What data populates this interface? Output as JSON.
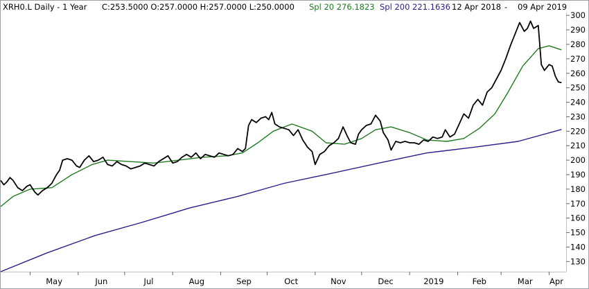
{
  "header": {
    "symbol": "XRH0.L Daily -  1 Year",
    "ohlc": "C:253.5000 O:257.0000 H:257.0000 L:250.0000",
    "spl20": "Spl 20 276.1823",
    "spl200": "Spl 200 221.1636",
    "date_start": "12 Apr 2018",
    "date_sep": "-",
    "date_end": "09 Apr 2019"
  },
  "colors": {
    "price": "#000000",
    "spl20": "#1f7a1f",
    "spl200": "#2e1a8a",
    "frame": "#9aa0a6"
  },
  "chart_data": {
    "type": "line",
    "x_tick_labels": [
      "May",
      "Jun",
      "Jul",
      "Aug",
      "Sep",
      "Oct",
      "Nov",
      "Dec",
      "2019",
      "Feb",
      "Mar",
      "Apr"
    ],
    "y_tick_labels": [
      "130",
      "140",
      "150",
      "160",
      "170",
      "180",
      "190",
      "200",
      "210",
      "220",
      "230",
      "240",
      "250",
      "260",
      "270",
      "280",
      "290",
      "300"
    ],
    "ylim": [
      123,
      302
    ],
    "xlim": [
      "2018-04-12",
      "2019-04-12"
    ],
    "grid": false,
    "series": [
      {
        "key": "price",
        "points": [
          [
            "2018-04-12",
            186
          ],
          [
            "2018-04-14",
            183
          ],
          [
            "2018-04-16",
            185
          ],
          [
            "2018-04-18",
            188
          ],
          [
            "2018-04-20",
            186
          ],
          [
            "2018-04-23",
            181
          ],
          [
            "2018-04-26",
            179
          ],
          [
            "2018-04-29",
            182
          ],
          [
            "2018-05-01",
            183
          ],
          [
            "2018-05-04",
            178
          ],
          [
            "2018-05-06",
            176
          ],
          [
            "2018-05-09",
            179
          ],
          [
            "2018-05-12",
            181
          ],
          [
            "2018-05-15",
            184
          ],
          [
            "2018-05-18",
            190
          ],
          [
            "2018-05-20",
            193
          ],
          [
            "2018-05-22",
            200
          ],
          [
            "2018-05-25",
            201
          ],
          [
            "2018-05-28",
            200
          ],
          [
            "2018-05-31",
            196
          ],
          [
            "2018-06-02",
            195
          ],
          [
            "2018-06-05",
            200
          ],
          [
            "2018-06-08",
            203
          ],
          [
            "2018-06-11",
            199
          ],
          [
            "2018-06-14",
            200
          ],
          [
            "2018-06-17",
            202
          ],
          [
            "2018-06-20",
            197
          ],
          [
            "2018-06-23",
            196
          ],
          [
            "2018-06-26",
            199
          ],
          [
            "2018-06-29",
            197
          ],
          [
            "2018-07-02",
            196
          ],
          [
            "2018-07-05",
            194
          ],
          [
            "2018-07-08",
            195
          ],
          [
            "2018-07-11",
            196
          ],
          [
            "2018-07-14",
            198
          ],
          [
            "2018-07-17",
            197
          ],
          [
            "2018-07-20",
            196
          ],
          [
            "2018-07-23",
            199
          ],
          [
            "2018-07-26",
            201
          ],
          [
            "2018-07-29",
            203
          ],
          [
            "2018-08-01",
            198
          ],
          [
            "2018-08-04",
            199
          ],
          [
            "2018-08-07",
            202
          ],
          [
            "2018-08-10",
            204
          ],
          [
            "2018-08-13",
            202
          ],
          [
            "2018-08-16",
            205
          ],
          [
            "2018-08-19",
            201
          ],
          [
            "2018-08-22",
            204
          ],
          [
            "2018-08-25",
            203
          ],
          [
            "2018-08-28",
            202
          ],
          [
            "2018-08-31",
            205
          ],
          [
            "2018-09-03",
            204
          ],
          [
            "2018-09-06",
            203
          ],
          [
            "2018-09-09",
            204
          ],
          [
            "2018-09-12",
            208
          ],
          [
            "2018-09-15",
            206
          ],
          [
            "2018-09-17",
            208
          ],
          [
            "2018-09-19",
            224
          ],
          [
            "2018-09-21",
            228
          ],
          [
            "2018-09-24",
            226
          ],
          [
            "2018-09-27",
            229
          ],
          [
            "2018-09-30",
            230
          ],
          [
            "2018-10-02",
            228
          ],
          [
            "2018-10-04",
            233
          ],
          [
            "2018-10-06",
            225
          ],
          [
            "2018-10-09",
            223
          ],
          [
            "2018-10-12",
            222
          ],
          [
            "2018-10-15",
            221
          ],
          [
            "2018-10-18",
            217
          ],
          [
            "2018-10-21",
            221
          ],
          [
            "2018-10-24",
            214
          ],
          [
            "2018-10-27",
            209
          ],
          [
            "2018-10-30",
            206
          ],
          [
            "2018-11-01",
            197
          ],
          [
            "2018-11-04",
            204
          ],
          [
            "2018-11-07",
            206
          ],
          [
            "2018-11-10",
            210
          ],
          [
            "2018-11-13",
            212
          ],
          [
            "2018-11-16",
            215
          ],
          [
            "2018-11-19",
            223
          ],
          [
            "2018-11-22",
            216
          ],
          [
            "2018-11-24",
            212
          ],
          [
            "2018-11-27",
            211
          ],
          [
            "2018-11-29",
            218
          ],
          [
            "2018-12-01",
            221
          ],
          [
            "2018-12-04",
            224
          ],
          [
            "2018-12-07",
            225
          ],
          [
            "2018-12-10",
            231
          ],
          [
            "2018-12-13",
            227
          ],
          [
            "2018-12-15",
            219
          ],
          [
            "2018-12-18",
            214
          ],
          [
            "2018-12-20",
            207
          ],
          [
            "2018-12-23",
            213
          ],
          [
            "2018-12-26",
            212
          ],
          [
            "2018-12-29",
            213
          ],
          [
            "2019-01-01",
            212
          ],
          [
            "2019-01-04",
            212
          ],
          [
            "2019-01-07",
            211
          ],
          [
            "2019-01-10",
            214
          ],
          [
            "2019-01-13",
            213
          ],
          [
            "2019-01-16",
            216
          ],
          [
            "2019-01-19",
            215
          ],
          [
            "2019-01-22",
            216
          ],
          [
            "2019-01-24",
            221
          ],
          [
            "2019-01-27",
            216
          ],
          [
            "2019-01-30",
            218
          ],
          [
            "2019-02-02",
            225
          ],
          [
            "2019-02-05",
            232
          ],
          [
            "2019-02-08",
            229
          ],
          [
            "2019-02-11",
            238
          ],
          [
            "2019-02-14",
            242
          ],
          [
            "2019-02-17",
            238
          ],
          [
            "2019-02-20",
            247
          ],
          [
            "2019-02-23",
            250
          ],
          [
            "2019-02-26",
            256
          ],
          [
            "2019-03-01",
            262
          ],
          [
            "2019-03-04",
            270
          ],
          [
            "2019-03-07",
            279
          ],
          [
            "2019-03-10",
            287
          ],
          [
            "2019-03-13",
            295
          ],
          [
            "2019-03-16",
            289
          ],
          [
            "2019-03-18",
            291
          ],
          [
            "2019-03-20",
            296
          ],
          [
            "2019-03-22",
            291
          ],
          [
            "2019-03-25",
            293
          ],
          [
            "2019-03-27",
            266
          ],
          [
            "2019-03-29",
            262
          ],
          [
            "2019-04-01",
            266
          ],
          [
            "2019-04-03",
            265
          ],
          [
            "2019-04-05",
            258
          ],
          [
            "2019-04-07",
            254
          ],
          [
            "2019-04-09",
            253.5
          ]
        ]
      },
      {
        "key": "spl20",
        "points": [
          [
            "2018-04-12",
            168
          ],
          [
            "2018-04-20",
            175
          ],
          [
            "2018-05-01",
            180
          ],
          [
            "2018-05-15",
            181
          ],
          [
            "2018-05-28",
            190
          ],
          [
            "2018-06-10",
            197
          ],
          [
            "2018-06-20",
            200
          ],
          [
            "2018-07-05",
            199
          ],
          [
            "2018-07-20",
            198
          ],
          [
            "2018-08-05",
            200
          ],
          [
            "2018-08-20",
            202
          ],
          [
            "2018-09-05",
            203
          ],
          [
            "2018-09-15",
            205
          ],
          [
            "2018-09-25",
            212
          ],
          [
            "2018-10-05",
            220
          ],
          [
            "2018-10-17",
            225
          ],
          [
            "2018-10-30",
            220
          ],
          [
            "2018-11-08",
            212
          ],
          [
            "2018-11-20",
            211
          ],
          [
            "2018-12-01",
            215
          ],
          [
            "2018-12-10",
            221
          ],
          [
            "2018-12-20",
            223
          ],
          [
            "2019-01-01",
            219
          ],
          [
            "2019-01-12",
            214
          ],
          [
            "2019-01-25",
            213
          ],
          [
            "2019-02-05",
            215
          ],
          [
            "2019-02-15",
            222
          ],
          [
            "2019-02-25",
            232
          ],
          [
            "2019-03-05",
            246
          ],
          [
            "2019-03-15",
            265
          ],
          [
            "2019-03-25",
            277
          ],
          [
            "2019-04-01",
            279
          ],
          [
            "2019-04-09",
            276.2
          ]
        ]
      },
      {
        "key": "spl200",
        "points": [
          [
            "2018-04-12",
            123
          ],
          [
            "2018-05-12",
            136
          ],
          [
            "2018-06-12",
            148
          ],
          [
            "2018-07-12",
            157
          ],
          [
            "2018-08-12",
            167
          ],
          [
            "2018-09-12",
            175
          ],
          [
            "2018-10-12",
            184
          ],
          [
            "2018-11-12",
            191
          ],
          [
            "2018-12-12",
            198
          ],
          [
            "2019-01-12",
            205
          ],
          [
            "2019-02-12",
            209
          ],
          [
            "2019-03-12",
            213
          ],
          [
            "2019-04-09",
            221.2
          ]
        ]
      }
    ]
  }
}
